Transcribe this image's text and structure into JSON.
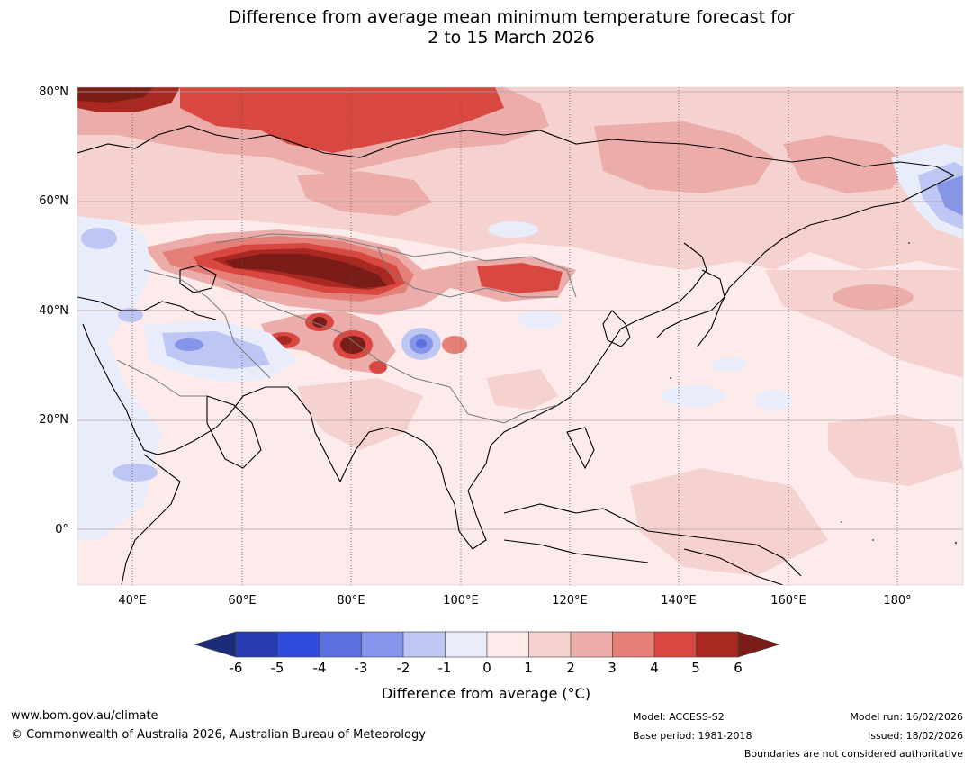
{
  "title": {
    "line1": "Difference from average mean minimum temperature forecast for",
    "line2": "2 to 15 March 2026"
  },
  "axes": {
    "lat_labels": [
      "80°N",
      "60°N",
      "40°N",
      "20°N",
      "0°"
    ],
    "lon_labels": [
      "40°E",
      "60°E",
      "80°E",
      "100°E",
      "120°E",
      "140°E",
      "160°E",
      "180°"
    ],
    "lat_range": [
      -10,
      80
    ],
    "lon_range": [
      30,
      191
    ]
  },
  "colorbar": {
    "tick_labels": [
      "-6",
      "-5",
      "-4",
      "-3",
      "-2",
      "-1",
      "0",
      "1",
      "2",
      "3",
      "4",
      "5",
      "6"
    ],
    "title": "Difference from average (°C)",
    "colors": [
      "#1d2c78",
      "#283caf",
      "#2f4be0",
      "#5a6fe0",
      "#8495ea",
      "#bec7f3",
      "#e8ecfb",
      "#fcebea",
      "#f5d1cf",
      "#ecadaa",
      "#e58079",
      "#d84840",
      "#a92922",
      "#7a1c17"
    ]
  },
  "footer": {
    "website": "www.bom.gov.au/climate",
    "copyright": "© Commonwealth of Australia 2026, Australian Bureau of Meteorology",
    "model": "Model: ACCESS-S2",
    "base_period": "Base period: 1981-2018",
    "model_run": "Model run: 16/02/2026",
    "issued": "Issued: 18/02/2026",
    "boundaries_note": "Boundaries are not considered authoritative"
  }
}
